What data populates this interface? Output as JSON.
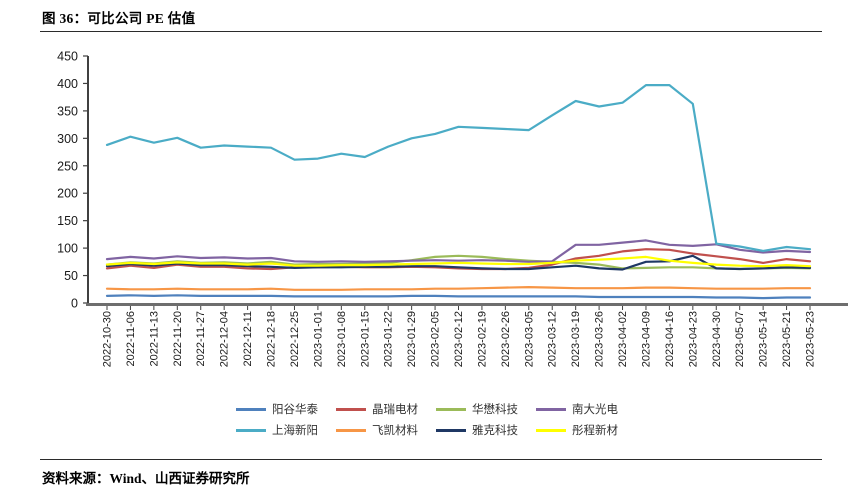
{
  "figure": {
    "title": "图 36：可比公司 PE 估值",
    "source": "资料来源：Wind、山西证券研究所"
  },
  "chart_data": {
    "type": "line",
    "title": "可比公司 PE 估值",
    "xlabel": "",
    "ylabel": "",
    "ylim": [
      0,
      450
    ],
    "ytick_step": 50,
    "grid": false,
    "legend_position": "bottom",
    "legend_items_per_row": 4,
    "axis_color": "#404040",
    "baseline_color": "#6e6e6e",
    "categories": [
      "2022-10-30",
      "2022-11-06",
      "2022-11-13",
      "2022-11-20",
      "2022-11-27",
      "2022-12-04",
      "2022-12-11",
      "2022-12-18",
      "2022-12-25",
      "2023-01-01",
      "2023-01-08",
      "2023-01-15",
      "2023-01-22",
      "2023-01-29",
      "2023-02-05",
      "2023-02-12",
      "2023-02-19",
      "2023-02-26",
      "2023-03-05",
      "2023-03-12",
      "2023-03-19",
      "2023-03-26",
      "2023-04-02",
      "2023-04-09",
      "2023-04-16",
      "2023-04-23",
      "2023-04-30",
      "2023-05-07",
      "2023-05-14",
      "2023-05-21",
      "2023-05-23"
    ],
    "series": [
      {
        "name": "阳谷华泰",
        "color": "#4F81BD",
        "values": [
          13,
          14,
          13,
          14,
          13,
          13,
          13,
          13,
          12,
          12,
          12,
          12,
          12,
          13,
          13,
          12,
          12,
          12,
          12,
          12,
          12,
          11,
          11,
          11,
          11,
          11,
          10,
          10,
          9,
          10,
          10
        ]
      },
      {
        "name": "晶瑞电材",
        "color": "#C0504D",
        "values": [
          63,
          68,
          64,
          70,
          66,
          66,
          63,
          62,
          65,
          65,
          66,
          65,
          65,
          66,
          65,
          63,
          62,
          62,
          64,
          70,
          81,
          86,
          94,
          98,
          97,
          90,
          85,
          80,
          73,
          80,
          76
        ]
      },
      {
        "name": "华懋科技",
        "color": "#9BBB59",
        "values": [
          70,
          74,
          72,
          76,
          73,
          74,
          72,
          75,
          70,
          71,
          71,
          72,
          73,
          78,
          84,
          86,
          84,
          80,
          77,
          75,
          73,
          70,
          63,
          64,
          65,
          65,
          63,
          62,
          63,
          64,
          63
        ]
      },
      {
        "name": "南大光电",
        "color": "#8064A2",
        "values": [
          80,
          84,
          81,
          85,
          82,
          83,
          81,
          82,
          76,
          75,
          76,
          75,
          76,
          77,
          78,
          77,
          78,
          77,
          75,
          76,
          106,
          106,
          110,
          114,
          106,
          104,
          107,
          97,
          92,
          95,
          93
        ]
      },
      {
        "name": "上海新阳",
        "color": "#4BACC6",
        "values": [
          288,
          303,
          292,
          301,
          283,
          287,
          285,
          283,
          261,
          263,
          272,
          266,
          285,
          300,
          308,
          321,
          319,
          317,
          315,
          342,
          368,
          358,
          365,
          397,
          397,
          363,
          108,
          103,
          95,
          102,
          98
        ]
      },
      {
        "name": "飞凯材料",
        "color": "#F79646",
        "values": [
          26,
          25,
          25,
          26,
          25,
          25,
          25,
          26,
          24,
          24,
          24,
          25,
          25,
          25,
          26,
          26,
          27,
          28,
          29,
          28,
          27,
          27,
          27,
          28,
          28,
          27,
          26,
          26,
          26,
          27,
          27
        ]
      },
      {
        "name": "雅克科技",
        "color": "#1F3864",
        "values": [
          67,
          71,
          68,
          72,
          69,
          69,
          67,
          66,
          64,
          65,
          65,
          66,
          66,
          67,
          67,
          65,
          63,
          62,
          62,
          65,
          68,
          63,
          61,
          75,
          76,
          86,
          63,
          62,
          63,
          65,
          64
        ]
      },
      {
        "name": "彤程新材",
        "color": "#FFFF00",
        "values": [
          70,
          73,
          71,
          74,
          72,
          72,
          70,
          72,
          68,
          68,
          69,
          69,
          70,
          71,
          72,
          73,
          72,
          71,
          71,
          73,
          77,
          79,
          81,
          84,
          77,
          73,
          70,
          68,
          67,
          69,
          67
        ]
      }
    ]
  }
}
